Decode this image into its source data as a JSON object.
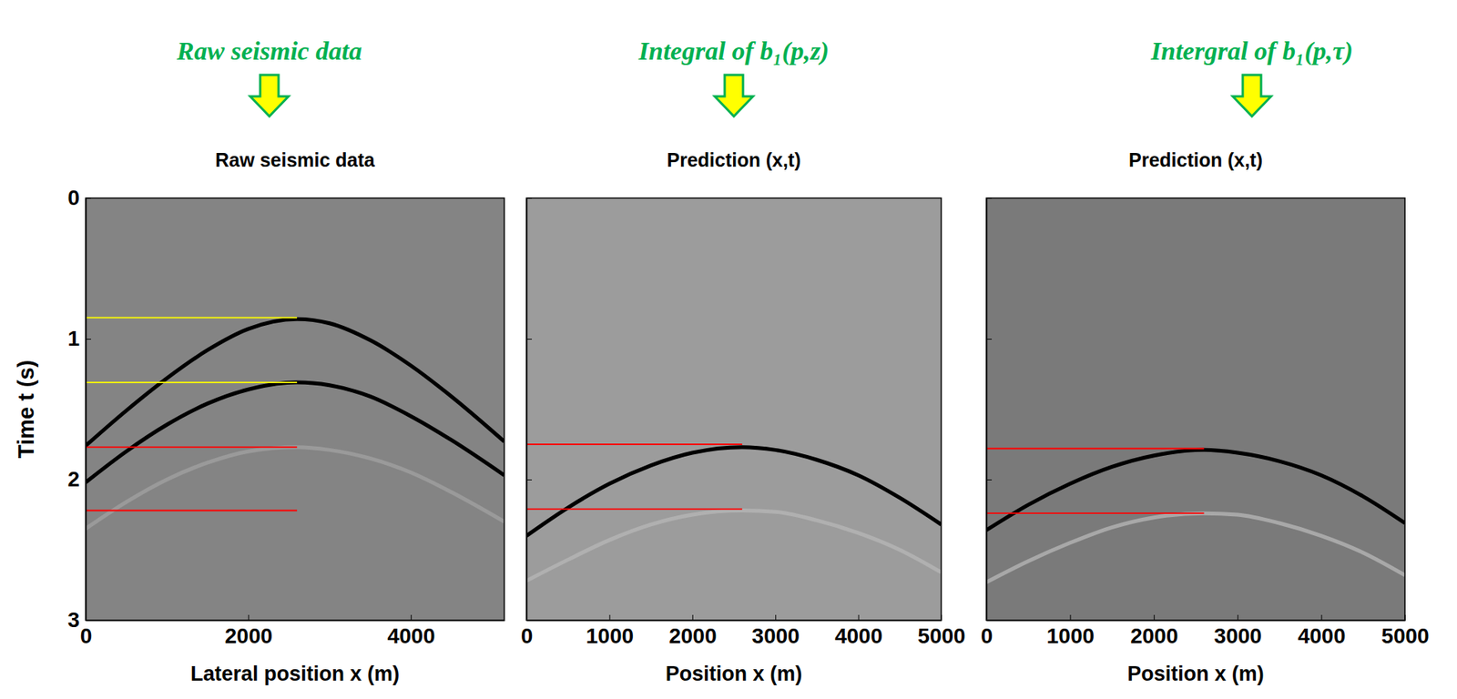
{
  "chart_data": [
    {
      "type": "line",
      "annotations": [
        {
          "text": "Raw seismic data"
        }
      ],
      "title": "Raw seismic data",
      "x_label": "Lateral position x (m)",
      "y_label": "Time t (s)",
      "xlim": [
        0,
        5150
      ],
      "ylim": [
        0,
        3
      ],
      "xticks": [
        0,
        2000,
        4000
      ],
      "yticks": [
        0,
        1,
        2,
        3
      ],
      "series": [
        {
          "x": [
            0,
            500,
            1000,
            1500,
            2000,
            2600,
            3000,
            3500,
            4000,
            4500,
            5150
          ],
          "values": [
            1.76,
            1.51,
            1.28,
            1.08,
            0.93,
            0.86,
            0.89,
            1.01,
            1.19,
            1.41,
            1.73
          ],
          "color": "#000000"
        },
        {
          "x": [
            0,
            500,
            1000,
            1500,
            2000,
            2600,
            3000,
            3500,
            4000,
            4500,
            5150
          ],
          "values": [
            2.02,
            1.8,
            1.61,
            1.46,
            1.36,
            1.31,
            1.33,
            1.41,
            1.55,
            1.72,
            1.97
          ],
          "color": "#000000"
        },
        {
          "x": [
            0,
            500,
            1000,
            1500,
            2000,
            2600,
            3000,
            3500,
            4000,
            4500,
            5150
          ],
          "values": [
            2.35,
            2.16,
            2.0,
            1.88,
            1.8,
            1.77,
            1.79,
            1.85,
            1.95,
            2.09,
            2.3
          ],
          "color": "#9a9a9a"
        },
        {
          "x": [
            0,
            2600
          ],
          "values": [
            0.85,
            0.85
          ],
          "color": "#ffff00"
        },
        {
          "x": [
            0,
            2600
          ],
          "values": [
            1.31,
            1.31
          ],
          "color": "#ffff00"
        },
        {
          "x": [
            0,
            2600
          ],
          "values": [
            1.77,
            1.77
          ],
          "color": "#ff0000"
        },
        {
          "x": [
            0,
            2600
          ],
          "values": [
            2.22,
            2.22
          ],
          "color": "#ff0000"
        }
      ]
    },
    {
      "type": "line",
      "annotations": [
        {
          "text": "Integral of b₁(p,z)"
        }
      ],
      "title": "Prediction (x,t)",
      "x_label": "Position x (m)",
      "xlim": [
        0,
        5000
      ],
      "ylim": [
        0,
        3
      ],
      "xticks": [
        0,
        1000,
        2000,
        3000,
        4000,
        5000
      ],
      "yticks": [
        0,
        1,
        2,
        3
      ],
      "tick_labels": "x",
      "series": [
        {
          "x": [
            0,
            500,
            1000,
            1500,
            2000,
            2600,
            3000,
            3500,
            4000,
            4500,
            5000
          ],
          "values": [
            2.4,
            2.2,
            2.03,
            1.9,
            1.81,
            1.77,
            1.79,
            1.86,
            1.97,
            2.13,
            2.32
          ],
          "color": "#000000"
        },
        {
          "x": [
            0,
            500,
            1000,
            1500,
            2000,
            2600,
            3000,
            3500,
            4000,
            4500,
            5000
          ],
          "values": [
            2.72,
            2.57,
            2.43,
            2.32,
            2.25,
            2.22,
            2.23,
            2.29,
            2.38,
            2.5,
            2.66
          ],
          "color": "#b0b0b0"
        },
        {
          "x": [
            0,
            2600
          ],
          "values": [
            1.75,
            1.75
          ],
          "color": "#ff0000"
        },
        {
          "x": [
            0,
            2600
          ],
          "values": [
            2.21,
            2.21
          ],
          "color": "#ff0000"
        }
      ]
    },
    {
      "type": "line",
      "annotations": [
        {
          "text": "Intergral of b₁(p,τ)"
        }
      ],
      "title": "Prediction (x,t)",
      "x_label": "Position x (m)",
      "xlim": [
        0,
        5000
      ],
      "ylim": [
        0,
        3
      ],
      "xticks": [
        0,
        1000,
        2000,
        3000,
        4000,
        5000
      ],
      "yticks": [
        0,
        1,
        2,
        3
      ],
      "tick_labels": "x",
      "series": [
        {
          "x": [
            0,
            500,
            1000,
            1500,
            2000,
            2600,
            3000,
            3500,
            4000,
            4500,
            5000
          ],
          "values": [
            2.36,
            2.18,
            2.03,
            1.91,
            1.83,
            1.79,
            1.81,
            1.87,
            1.97,
            2.12,
            2.31
          ],
          "color": "#000000"
        },
        {
          "x": [
            0,
            500,
            1000,
            1500,
            2000,
            2600,
            3000,
            3500,
            4000,
            4500,
            5000
          ],
          "values": [
            2.73,
            2.58,
            2.45,
            2.34,
            2.27,
            2.24,
            2.25,
            2.31,
            2.4,
            2.52,
            2.68
          ],
          "color": "#a8a8a8"
        },
        {
          "x": [
            0,
            2600
          ],
          "values": [
            1.78,
            1.78
          ],
          "color": "#ff0000"
        },
        {
          "x": [
            0,
            2600
          ],
          "values": [
            2.24,
            2.24
          ],
          "color": "#ff0000"
        }
      ]
    }
  ]
}
